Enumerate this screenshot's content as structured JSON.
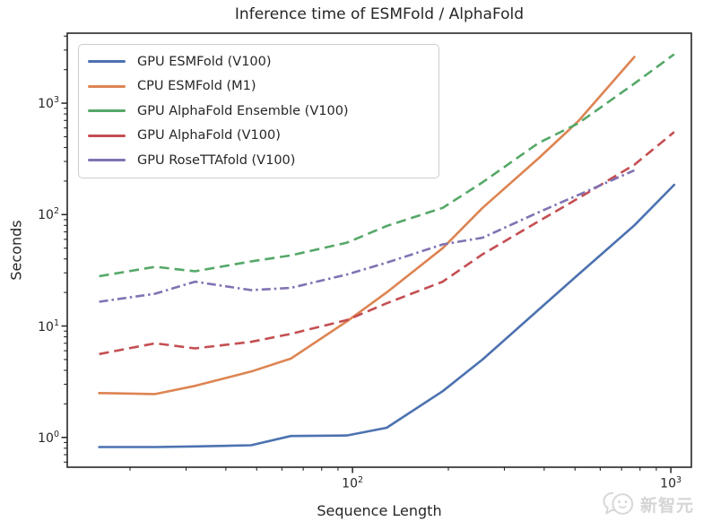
{
  "watermark": {
    "text": "新智元"
  },
  "chart_data": {
    "type": "line",
    "title": "Inference time of ESMFold / AlphaFold",
    "xlabel": "Sequence Length",
    "ylabel": "Seconds",
    "x_scale": "log",
    "y_scale": "log",
    "xlim": [
      12.7,
      1160
    ],
    "ylim": [
      0.54,
      4250
    ],
    "grid": false,
    "legend_position": "upper left",
    "x_major_ticks": [
      100,
      1000
    ],
    "x_tick_labels": [
      "10^2",
      "10^3"
    ],
    "y_major_ticks": [
      1,
      10,
      100,
      1000
    ],
    "y_tick_labels": [
      "10^0",
      "10^1",
      "10^2",
      "10^3"
    ],
    "x": [
      16,
      24,
      32,
      48,
      64,
      96,
      128,
      192,
      256,
      384,
      512,
      768,
      1024
    ],
    "series": [
      {
        "name": "GPU ESMFold (V100)",
        "color": "#4C72B0",
        "style": "solid",
        "values": [
          0.82,
          0.82,
          0.83,
          0.85,
          1.03,
          1.04,
          1.22,
          2.6,
          5.0,
          14,
          29,
          80,
          185
        ]
      },
      {
        "name": "CPU ESMFold (M1)",
        "color": "#DD8452",
        "style": "solid",
        "values": [
          2.5,
          2.45,
          2.9,
          3.9,
          5.1,
          11,
          20,
          50,
          115,
          320,
          690,
          2600,
          null
        ]
      },
      {
        "name": "GPU AlphaFold Ensemble (V100)",
        "color": "#55A868",
        "style": "dashed",
        "values": [
          28,
          34,
          31,
          38,
          43,
          56,
          79,
          115,
          195,
          440,
          660,
          1500,
          2750
        ]
      },
      {
        "name": "GPU AlphaFold (V100)",
        "color": "#C44E52",
        "style": "dashed",
        "values": [
          5.6,
          7.0,
          6.3,
          7.2,
          8.5,
          11.3,
          16,
          25,
          44,
          87,
          140,
          280,
          550
        ]
      },
      {
        "name": "GPU RoseTTAfold (V100)",
        "color": "#8172B3",
        "style": "dashdot",
        "values": [
          16.5,
          19.5,
          25,
          21,
          22,
          29,
          37,
          54,
          62,
          105,
          150,
          250,
          null
        ]
      }
    ]
  }
}
